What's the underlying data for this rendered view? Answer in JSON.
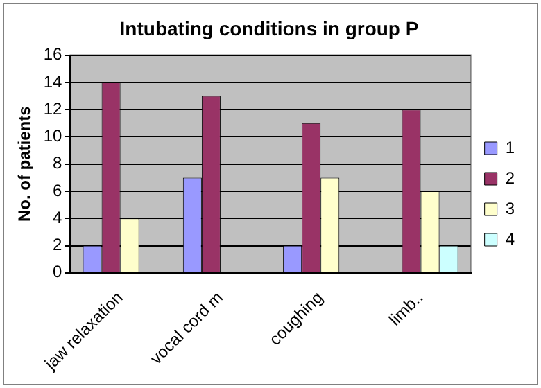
{
  "chart_data": {
    "type": "bar",
    "title": "Intubating conditions in group P",
    "ylabel": "No. of patients",
    "categories": [
      "jaw relaxation",
      "vocal cord m",
      "coughing",
      "limb.."
    ],
    "series": [
      {
        "name": "1",
        "color": "#9999ff",
        "values": [
          2,
          7,
          2,
          0
        ]
      },
      {
        "name": "2",
        "color": "#993366",
        "values": [
          14,
          13,
          11,
          12
        ]
      },
      {
        "name": "3",
        "color": "#ffffcc",
        "values": [
          4,
          0,
          7,
          6
        ]
      },
      {
        "name": "4",
        "color": "#ccffff",
        "values": [
          0,
          0,
          0,
          2
        ]
      }
    ],
    "ylim": [
      0,
      16
    ],
    "yticks": [
      0,
      2,
      4,
      6,
      8,
      10,
      12,
      14,
      16
    ],
    "grid": "y",
    "legend": "right"
  }
}
